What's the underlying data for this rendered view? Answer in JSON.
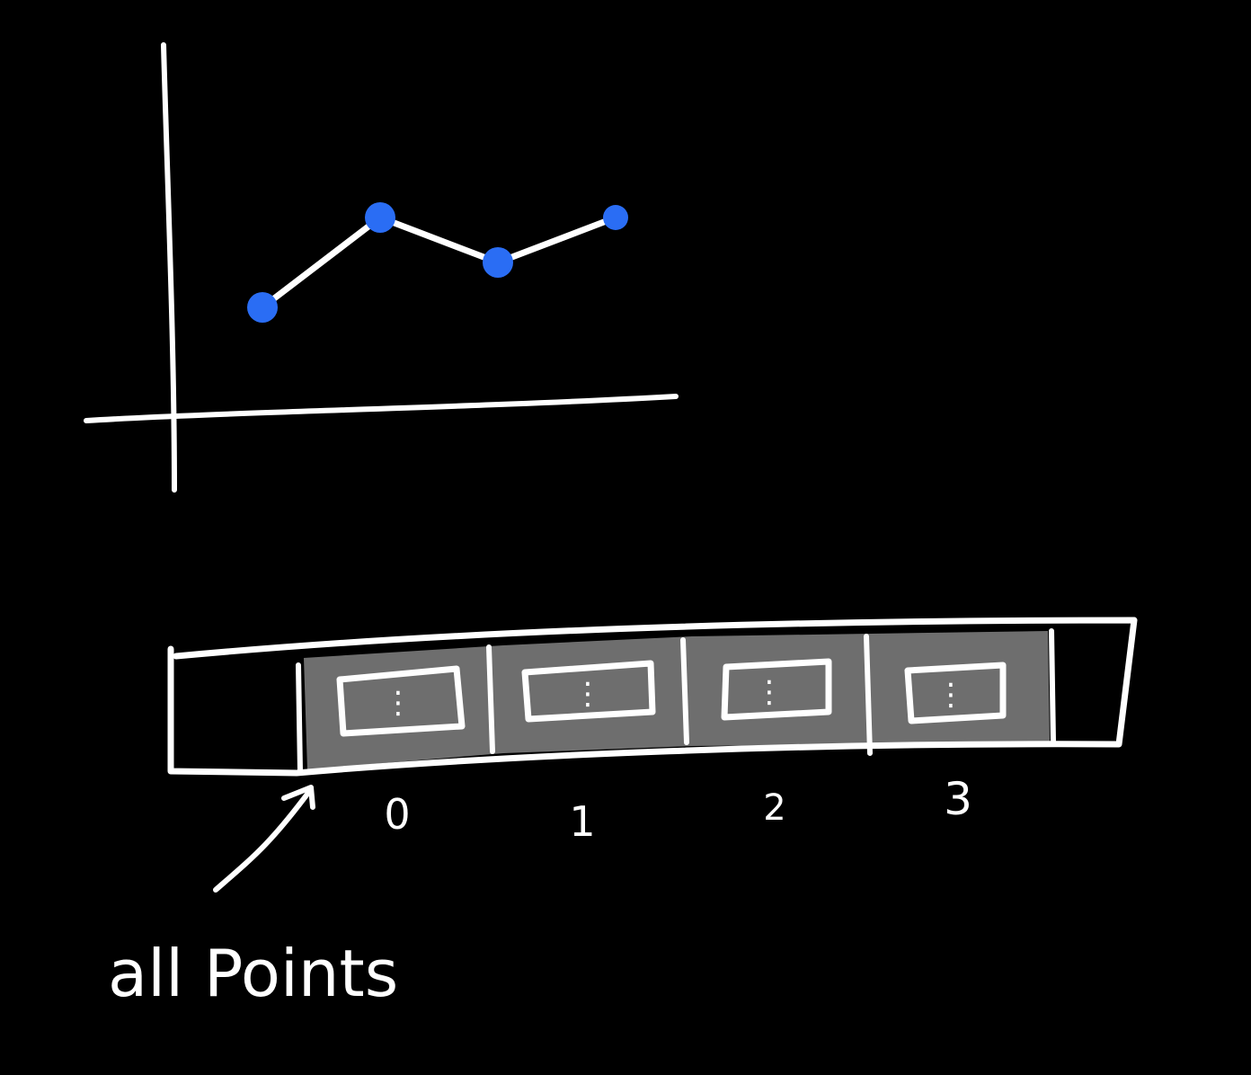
{
  "colors": {
    "background": "#000000",
    "ink": "#ffffff",
    "point": "#2a6df4",
    "slot_fill": "#6e6e6e",
    "cell_fill": "#a9a9a9"
  },
  "chart_data": {
    "type": "line",
    "x": [
      0,
      1,
      2,
      3
    ],
    "values": [
      1.0,
      2.0,
      1.5,
      2.0
    ],
    "grid": false,
    "legend": "none",
    "axis_ticks_shown": false,
    "point_color": "#2a6df4",
    "line_color": "#ffffff"
  },
  "array": {
    "indices": [
      "0",
      "1",
      "2",
      "3"
    ],
    "cell_dots": "⋮"
  },
  "label": {
    "text": "all Points"
  }
}
